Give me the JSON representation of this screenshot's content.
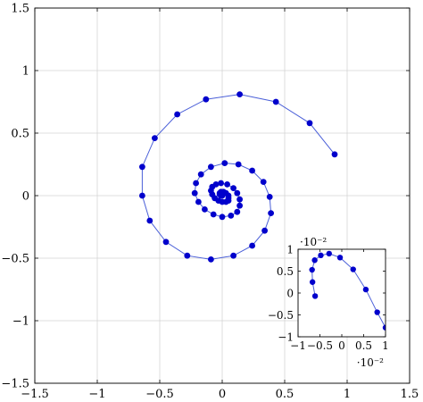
{
  "chart_data": [
    {
      "type": "line",
      "marker": "circle",
      "title": "",
      "xlabel": "",
      "ylabel": "",
      "xlim": [
        -1.5,
        1.5
      ],
      "ylim": [
        -1.5,
        1.5
      ],
      "grid": true,
      "line_color": "#4a5fd8",
      "marker_color": "#0000cc",
      "x_ticks": [
        -1.5,
        -1,
        -0.5,
        0,
        0.5,
        1,
        1.5
      ],
      "y_ticks": [
        -1.5,
        -1,
        -0.5,
        0,
        0.5,
        1,
        1.5
      ],
      "x_tick_labels": [
        "−1.5",
        "−1",
        "−0.5",
        "0",
        "0.5",
        "1",
        "1.5"
      ],
      "y_tick_labels": [
        "−1.5",
        "−1",
        "−0.5",
        "0",
        "0.5",
        "1",
        "1.5"
      ],
      "series": [
        {
          "x": [
            0.9,
            0.7,
            0.43,
            0.14,
            -0.13,
            -0.36,
            -0.54,
            -0.64,
            -0.64,
            -0.58,
            -0.45,
            -0.28,
            -0.09,
            0.09,
            0.24,
            0.34,
            0.39,
            0.38,
            0.33,
            0.24,
            0.13,
            0.02,
            -0.09,
            -0.17,
            -0.21,
            -0.22,
            -0.19,
            -0.14,
            -0.07,
            0.0,
            0.07,
            0.12,
            0.14,
            0.14,
            0.12,
            0.09,
            0.04,
            -0.01,
            -0.05,
            -0.08,
            -0.09,
            -0.08,
            -0.06,
            -0.03,
            0.0,
            0.03,
            0.05,
            0.05,
            0.05,
            0.03,
            0.01,
            -0.01,
            -0.02,
            -0.02,
            -0.01,
            0.0
          ],
          "y": [
            0.33,
            0.58,
            0.75,
            0.81,
            0.77,
            0.65,
            0.46,
            0.23,
            0.0,
            -0.2,
            -0.37,
            -0.48,
            -0.51,
            -0.48,
            -0.4,
            -0.28,
            -0.14,
            -0.01,
            0.11,
            0.2,
            0.25,
            0.26,
            0.23,
            0.17,
            0.1,
            0.02,
            -0.05,
            -0.11,
            -0.15,
            -0.17,
            -0.16,
            -0.13,
            -0.08,
            -0.03,
            0.02,
            0.06,
            0.09,
            0.1,
            0.09,
            0.07,
            0.04,
            0.01,
            -0.02,
            -0.04,
            -0.05,
            -0.05,
            -0.04,
            -0.02,
            0.0,
            0.02,
            0.03,
            0.03,
            0.02,
            0.01,
            0.0,
            0.0
          ]
        }
      ]
    },
    {
      "type": "line",
      "marker": "circle",
      "title": "",
      "xlabel": "",
      "ylabel": "",
      "xlim": [
        -0.01,
        0.01
      ],
      "ylim": [
        -0.01,
        0.01
      ],
      "grid": false,
      "line_color": "#4a5fd8",
      "marker_color": "#0000cc",
      "x_ticks": [
        -1,
        -0.5,
        0,
        0.5,
        1
      ],
      "y_ticks": [
        -1,
        -0.5,
        0,
        0.5,
        1
      ],
      "x_tick_labels": [
        "−1",
        "−0.5",
        "0",
        "0.5",
        "1"
      ],
      "y_tick_labels": [
        "−1",
        "−0.5",
        "0",
        "0.5",
        "1"
      ],
      "x_multiplier": "·10⁻²",
      "y_multiplier": "·10⁻²",
      "series": [
        {
          "x": [
            0.0105,
            0.01,
            0.0081,
            0.0055,
            0.0026,
            -0.0004,
            -0.0029,
            -0.0048,
            -0.0062,
            -0.0068,
            -0.0067,
            -0.0061
          ],
          "y": [
            -0.0115,
            -0.0079,
            -0.0044,
            0.0008,
            0.0054,
            0.0081,
            0.009,
            0.0086,
            0.0075,
            0.0053,
            0.0025,
            -0.0007
          ]
        }
      ]
    }
  ]
}
